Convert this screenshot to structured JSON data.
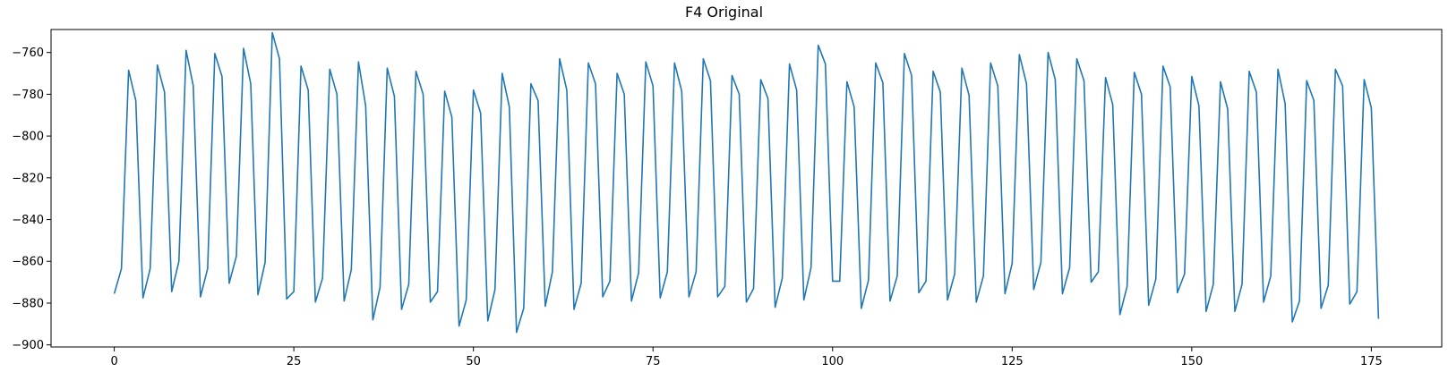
{
  "chart_data": {
    "type": "line",
    "title": "F4 Original",
    "xlabel": "",
    "ylabel": "",
    "xlim": [
      -8.8,
      184.8
    ],
    "ylim": [
      -901,
      -749
    ],
    "grid": false,
    "legend": "none",
    "xticks": [
      0,
      25,
      50,
      75,
      100,
      125,
      150,
      175
    ],
    "yticks": [
      -900,
      -880,
      -860,
      -840,
      -820,
      -800,
      -780,
      -760
    ],
    "series": [
      {
        "color": "#1f77b4",
        "x": [
          0,
          1,
          2,
          3,
          4,
          5,
          6,
          7,
          8,
          9,
          10,
          11,
          12,
          13,
          14,
          15,
          16,
          17,
          18,
          19,
          20,
          21,
          22,
          23,
          24,
          25,
          26,
          27,
          28,
          29,
          30,
          31,
          32,
          33,
          34,
          35,
          36,
          37,
          38,
          39,
          40,
          41,
          42,
          43,
          44,
          45,
          46,
          47,
          48,
          49,
          50,
          51,
          52,
          53,
          54,
          55,
          56,
          57,
          58,
          59,
          60,
          61,
          62,
          63,
          64,
          65,
          66,
          67,
          68,
          69,
          70,
          71,
          72,
          73,
          74,
          75,
          76,
          77,
          78,
          79,
          80,
          81,
          82,
          83,
          84,
          85,
          86,
          87,
          88,
          89,
          90,
          91,
          92,
          93,
          94,
          95,
          96,
          97,
          98,
          99,
          100,
          101,
          102,
          103,
          104,
          105,
          106,
          107,
          108,
          109,
          110,
          111,
          112,
          113,
          114,
          115,
          116,
          117,
          118,
          119,
          120,
          121,
          122,
          123,
          124,
          125,
          126,
          127,
          128,
          129,
          130,
          131,
          132,
          133,
          134,
          135,
          136,
          137,
          138,
          139,
          140,
          141,
          142,
          143,
          144,
          145,
          146,
          147,
          148,
          149,
          150,
          151,
          152,
          153,
          154,
          155,
          156,
          157,
          158,
          159,
          160,
          161,
          162,
          163,
          164,
          165,
          166,
          167,
          168,
          169,
          170,
          171,
          172,
          173,
          174,
          175,
          176
        ],
        "values": [
          -875.5,
          -863.5,
          -768.5,
          -783,
          -877.5,
          -863.5,
          -766,
          -779,
          -874.5,
          -860,
          -759,
          -776,
          -877,
          -863.5,
          -760.5,
          -771.5,
          -870.5,
          -857.5,
          -758,
          -775,
          -876,
          -860.5,
          -750.5,
          -763,
          -878,
          -874.5,
          -766.5,
          -778,
          -879.5,
          -868,
          -768,
          -780,
          -879,
          -864,
          -764.5,
          -785.5,
          -888,
          -872.5,
          -767.5,
          -781,
          -883,
          -871,
          -769,
          -780,
          -879.5,
          -874.5,
          -778.5,
          -791,
          -891,
          -878.5,
          -778,
          -789,
          -888.5,
          -873.5,
          -770,
          -786,
          -894,
          -882.5,
          -775,
          -783,
          -881.5,
          -865,
          -763,
          -778,
          -883,
          -870.5,
          -765,
          -775,
          -877,
          -869.5,
          -770,
          -780,
          -879,
          -865.5,
          -764.5,
          -776,
          -877.5,
          -865,
          -765,
          -778.5,
          -877,
          -865,
          -763,
          -773.5,
          -877,
          -872,
          -771,
          -780,
          -879.5,
          -873,
          -773,
          -782,
          -882,
          -868,
          -765.5,
          -778,
          -878.5,
          -863,
          -756.5,
          -765.5,
          -869.5,
          -869.5,
          -774,
          -786,
          -882.5,
          -869,
          -765,
          -774.5,
          -879,
          -867,
          -760.5,
          -771,
          -875,
          -869.5,
          -769,
          -779,
          -878.5,
          -866,
          -767.5,
          -780.5,
          -879.5,
          -867,
          -765,
          -776,
          -875.5,
          -861,
          -761,
          -775,
          -873.5,
          -860.5,
          -760,
          -773,
          -875.5,
          -863,
          -763,
          -773.5,
          -870,
          -865,
          -772,
          -785,
          -885.5,
          -872,
          -769.5,
          -780,
          -881,
          -868.5,
          -766.5,
          -776.5,
          -875,
          -866,
          -771.5,
          -785.5,
          -884,
          -871,
          -774,
          -787,
          -884,
          -871,
          -769,
          -779,
          -879.5,
          -867,
          -768,
          -784.5,
          -889,
          -879,
          -773.5,
          -783,
          -882.5,
          -871.5,
          -768,
          -776,
          -880.5,
          -874.5,
          -773,
          -786.5,
          -887.5
        ]
      }
    ]
  }
}
